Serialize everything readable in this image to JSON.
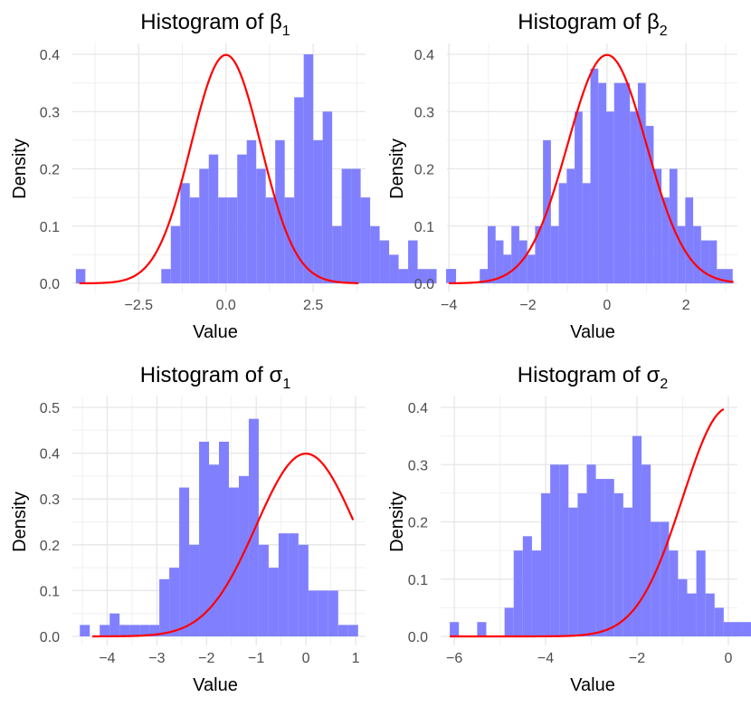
{
  "chart_data": [
    {
      "type": "bar",
      "title": "Histogram of β",
      "title_subscript": "1",
      "xlabel": "Value",
      "ylabel": "Density",
      "xlim": [
        -4.4,
        4.0
      ],
      "ylim": [
        0,
        0.4
      ],
      "x_ticks": [
        -2.5,
        0,
        2.5
      ],
      "x_tick_labels": [
        "−2.5",
        "0.0",
        "2.5"
      ],
      "y_ticks": [
        0,
        0.1,
        0.2,
        0.3,
        0.4
      ],
      "y_tick_labels": [
        "0.0",
        "0.1",
        "0.2",
        "0.3",
        "0.4"
      ],
      "bin_start": -4.3,
      "bin_width": 0.272,
      "densities": [
        0.025,
        0,
        0,
        0,
        0,
        0,
        0,
        0,
        0,
        0.025,
        0.1,
        0.175,
        0.15,
        0.2,
        0.225,
        0.15,
        0.15,
        0.225,
        0.25,
        0.2,
        0.15,
        0.25,
        0.15,
        0.325,
        0.4,
        0.25,
        0.3,
        0.1,
        0.2,
        0.2,
        0.15,
        0.1,
        0.075,
        0.05,
        0.025,
        0.075,
        0.025,
        0.025,
        0,
        0.025
      ],
      "bar_color": "#8080ff",
      "curve": "normal(0,1)",
      "curve_color": "#ff0000",
      "curve_range": [
        -4.2,
        3.8
      ],
      "grid": true
    },
    {
      "type": "bar",
      "title": "Histogram of β",
      "title_subscript": "2",
      "xlabel": "Value",
      "ylabel": "Density",
      "xlim": [
        -4.05,
        3.3
      ],
      "ylim": [
        0,
        0.4
      ],
      "x_ticks": [
        -4,
        -2,
        0,
        2
      ],
      "x_tick_labels": [
        "−4",
        "−2",
        "0",
        "2"
      ],
      "y_ticks": [
        0,
        0.1,
        0.2,
        0.3,
        0.4
      ],
      "y_tick_labels": [
        "0.0",
        "0.1",
        "0.2",
        "0.3",
        "0.4"
      ],
      "bin_start": -4.02,
      "bin_width": 0.2,
      "densities": [
        0.025,
        0,
        0,
        0,
        0.025,
        0.1,
        0.075,
        0.05,
        0.1,
        0.075,
        0.05,
        0.1,
        0.25,
        0.1,
        0.175,
        0.2,
        0.3,
        0.175,
        0.375,
        0.35,
        0.3,
        0.35,
        0.35,
        0.3,
        0.35,
        0.275,
        0.2,
        0.15,
        0.2,
        0.1,
        0.15,
        0.1,
        0.075,
        0.075,
        0.025,
        0.025,
        0,
        0,
        0,
        0.025
      ],
      "bar_color": "#8080ff",
      "curve": "normal(0,1)",
      "curve_color": "#ff0000",
      "curve_range": [
        -4.0,
        3.2
      ],
      "grid": true
    },
    {
      "type": "bar",
      "title": "Histogram of σ",
      "title_subscript": "1",
      "xlabel": "Value",
      "ylabel": "Density",
      "xlim": [
        -4.7,
        1.2
      ],
      "ylim": [
        0,
        0.5
      ],
      "x_ticks": [
        -4,
        -3,
        -2,
        -1,
        0,
        1
      ],
      "x_tick_labels": [
        "−4",
        "−3",
        "−2",
        "−1",
        "0",
        "1"
      ],
      "y_ticks": [
        0,
        0.1,
        0.2,
        0.3,
        0.4,
        0.5
      ],
      "y_tick_labels": [
        "0.0",
        "0.1",
        "0.2",
        "0.3",
        "0.4",
        "0.5"
      ],
      "bin_start": -4.55,
      "bin_width": 0.2,
      "densities": [
        0.025,
        0,
        0.025,
        0.05,
        0.025,
        0.025,
        0.025,
        0.025,
        0.125,
        0.15,
        0.325,
        0.2,
        0.425,
        0.375,
        0.425,
        0.325,
        0.35,
        0.475,
        0.2,
        0.15,
        0.225,
        0.225,
        0.2,
        0.1,
        0.1,
        0.1,
        0.025,
        0.025
      ],
      "bar_color": "#8080ff",
      "curve": "normal(0,1)",
      "curve_color": "#ff0000",
      "curve_range": [
        -4.3,
        0.95
      ],
      "grid": true
    },
    {
      "type": "bar",
      "title": "Histogram of σ",
      "title_subscript": "2",
      "xlabel": "Value",
      "ylabel": "Density",
      "xlim": [
        -6.3,
        0.2
      ],
      "ylim": [
        0,
        0.4
      ],
      "x_ticks": [
        -6,
        -4,
        -2,
        0
      ],
      "x_tick_labels": [
        "−6",
        "−4",
        "−2",
        "0"
      ],
      "y_ticks": [
        0,
        0.1,
        0.2,
        0.3,
        0.4
      ],
      "y_tick_labels": [
        "0.0",
        "0.1",
        "0.2",
        "0.3",
        "0.4"
      ],
      "bin_start": -6.1,
      "bin_width": 0.2,
      "densities": [
        0.025,
        0,
        0,
        0.025,
        0,
        0,
        0.05,
        0.15,
        0.175,
        0.15,
        0.25,
        0.3,
        0.3,
        0.225,
        0.25,
        0.3,
        0.275,
        0.275,
        0.25,
        0.225,
        0.35,
        0.3,
        0.2,
        0.2,
        0.15,
        0.1,
        0.075,
        0.15,
        0.075,
        0.05,
        0.025,
        0.025,
        0.025
      ],
      "bar_color": "#8080ff",
      "curve": "normal(0,1)",
      "curve_color": "#ff0000",
      "curve_range": [
        -6.1,
        -0.1
      ],
      "grid": true
    }
  ]
}
